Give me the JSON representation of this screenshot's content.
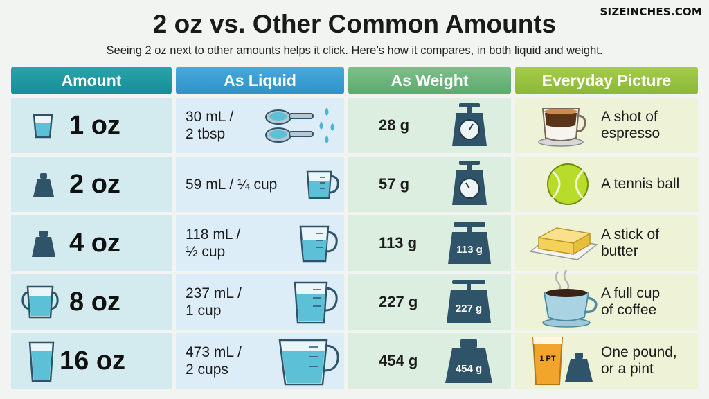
{
  "brand": "SIZEINCHES.COM",
  "title": "2 oz vs. Other Common Amounts",
  "subtitle": "Seeing 2 oz next to other amounts helps it click. Here’s how it compares, in both liquid and weight.",
  "headers": {
    "amount": "Amount",
    "liquid": "As Liquid",
    "weight": "As Weight",
    "picture": "Everyday Picture"
  },
  "rows": [
    {
      "amount": "1 oz",
      "liquid_1": "30 mL /",
      "liquid_2": "2 tbsp",
      "weight": "28 g",
      "picture_1": "A shot of",
      "picture_2": "espresso",
      "amount_icon": "small-glass-icon",
      "liquid_icon": "measuring-spoons-icon",
      "weight_icon": "dial-scale-icon",
      "picture_icon": "espresso-cup-icon"
    },
    {
      "amount": "2 oz",
      "liquid_1": "59 mL / ¼ cup",
      "liquid_2": "",
      "weight": "57 g",
      "picture_1": "A tennis ball",
      "picture_2": "",
      "amount_icon": "weight-icon",
      "liquid_icon": "measuring-cup-icon",
      "weight_icon": "dial-scale-icon",
      "picture_icon": "tennis-ball-icon"
    },
    {
      "amount": "4 oz",
      "liquid_1": "118 mL /",
      "liquid_2": "½ cup",
      "weight": "113 g",
      "picture_1": "A stick of",
      "picture_2": "butter",
      "amount_icon": "weight-icon",
      "liquid_icon": "measuring-cup-icon",
      "weight_icon": "scale-icon",
      "weight_label": "113 g",
      "picture_icon": "butter-stick-icon"
    },
    {
      "amount": "8 oz",
      "liquid_1": "237 mL /",
      "liquid_2": "1 cup",
      "weight": "227 g",
      "picture_1": "A full cup",
      "picture_2": "of coffee",
      "amount_icon": "mug-icon",
      "liquid_icon": "measuring-cup-icon",
      "weight_icon": "scale-icon",
      "weight_label": "227 g",
      "picture_icon": "coffee-cup-icon"
    },
    {
      "amount": "16 oz",
      "liquid_1": "473 mL /",
      "liquid_2": "2 cups",
      "weight": "454 g",
      "picture_1": "One pound,",
      "picture_2": "or a pint",
      "amount_icon": "tall-glass-icon",
      "liquid_icon": "large-measuring-cup-icon",
      "weight_icon": "weight-icon",
      "weight_label": "454 g",
      "picture_icon": "pint-glass-icon",
      "pint_label": "1 PT"
    }
  ],
  "colors": {
    "amount_header": "#168e97",
    "liquid_header": "#2f93c9",
    "weight_header": "#5daa6e",
    "picture_header": "#8bb836",
    "icon_dark": "#2f5368",
    "water": "#5cc0d6"
  }
}
